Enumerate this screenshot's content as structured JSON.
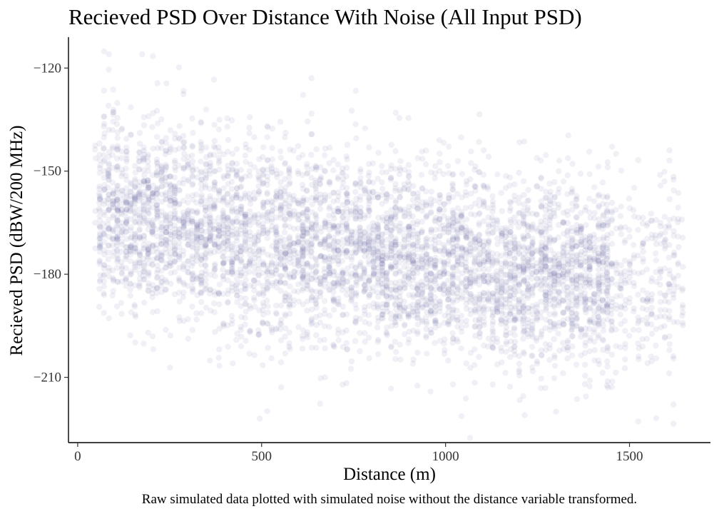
{
  "chart_data": {
    "type": "scatter",
    "title": "Recieved PSD Over Distance With Noise (All Input PSD)",
    "xlabel": "Distance (m)",
    "ylabel": "Recieved PSD (dBW/200 MHz)",
    "caption": "Raw simulated data plotted with simulated noise without the distance variable transformed.",
    "xlim": [
      -25,
      1720
    ],
    "ylim": [
      -229,
      -111
    ],
    "x_ticks": [
      0,
      500,
      1000,
      1500
    ],
    "x_tick_labels": [
      "0",
      "500",
      "1000",
      "1500"
    ],
    "y_ticks": [
      -120,
      -150,
      -180,
      -210
    ],
    "y_tick_labels": [
      "−120",
      "−150",
      "−180",
      "−210"
    ],
    "grid": false,
    "legend": "none",
    "point_color": "#3b3b86",
    "point_opacity": 0.08,
    "distribution": {
      "x_range": [
        50,
        1650
      ],
      "trend_y_at_x": [
        {
          "x": 50,
          "y": -160
        },
        {
          "x": 500,
          "y": -170
        },
        {
          "x": 1000,
          "y": -176
        },
        {
          "x": 1300,
          "y": -180
        },
        {
          "x": 1650,
          "y": -183
        }
      ],
      "y_spread_sd": 14,
      "outliers": [
        {
          "x": 85,
          "y": -116
        },
        {
          "x": 175,
          "y": -116
        },
        {
          "x": 495,
          "y": -222
        },
        {
          "x": 1215,
          "y": -221
        },
        {
          "x": 1300,
          "y": -220
        }
      ]
    }
  }
}
